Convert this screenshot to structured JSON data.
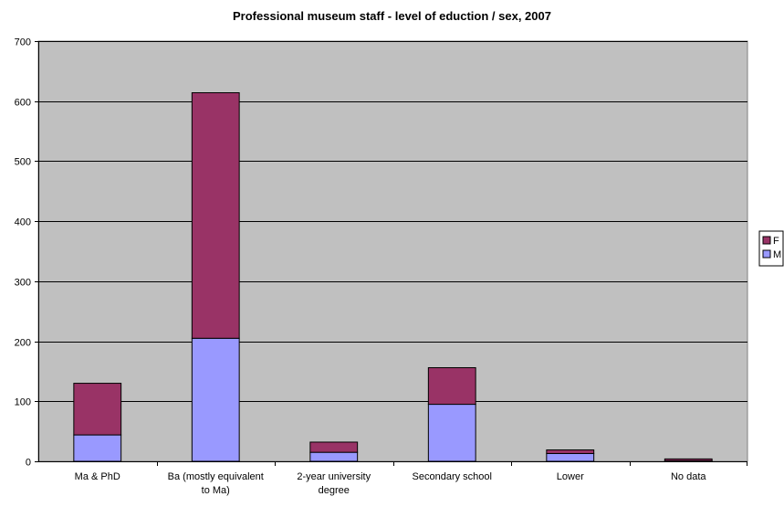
{
  "chart_data": {
    "type": "bar",
    "stacked": true,
    "title": "Professional museum staff - level of eduction / sex, 2007",
    "categories": [
      "Ma & PhD",
      "Ba (mostly equivalent to Ma)",
      "2-year university degree",
      "Secondary school",
      "Lower",
      "No data"
    ],
    "category_lines": [
      [
        "Ma & PhD"
      ],
      [
        "Ba (mostly equivalent",
        "to Ma)"
      ],
      [
        "2-year university",
        "degree"
      ],
      [
        "Secondary school"
      ],
      [
        "Lower"
      ],
      [
        "No data"
      ]
    ],
    "series": [
      {
        "name": "M",
        "values": [
          44,
          205,
          15,
          95,
          13,
          1
        ],
        "color": "#9999ff"
      },
      {
        "name": "F",
        "values": [
          86,
          409,
          17,
          61,
          6,
          3
        ],
        "color": "#993366"
      }
    ],
    "ylim": [
      0,
      700
    ],
    "yticks": [
      0,
      100,
      200,
      300,
      400,
      500,
      600,
      700
    ],
    "xlabel": "",
    "ylabel": "",
    "grid": true,
    "plot_background": "#c0c0c0",
    "legend": {
      "position": "right",
      "order": [
        "F",
        "M"
      ]
    }
  }
}
